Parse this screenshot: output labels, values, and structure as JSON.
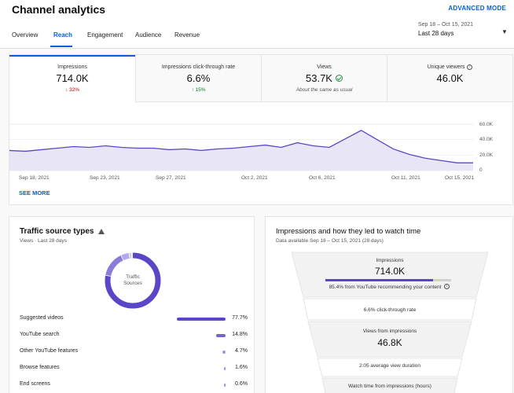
{
  "header": {
    "title": "Channel analytics",
    "advanced_mode": "ADVANCED MODE",
    "tabs": [
      {
        "label": "Overview",
        "active": false
      },
      {
        "label": "Reach",
        "active": true
      },
      {
        "label": "Engagement",
        "active": false
      },
      {
        "label": "Audience",
        "active": false
      },
      {
        "label": "Revenue",
        "active": false
      }
    ],
    "date_range": {
      "dates": "Sep 18 – Oct 15, 2021",
      "label": "Last 28 days"
    }
  },
  "metrics": [
    {
      "label": "Impressions",
      "value": "714.0K",
      "change": "32%",
      "direction": "down"
    },
    {
      "label": "Impressions click-through rate",
      "value": "6.6%",
      "change": "15%",
      "direction": "up"
    },
    {
      "label": "Views",
      "value": "53.7K",
      "note": "About the same as usual"
    },
    {
      "label": "Unique viewers",
      "value": "46.0K"
    }
  ],
  "chart_data": {
    "type": "area",
    "series": [
      {
        "values": [
          26000,
          25000,
          27000,
          29000,
          31000,
          30000,
          32000,
          30000,
          29000,
          29000,
          27000,
          28000,
          26000,
          28000,
          29000,
          31000,
          33000,
          30000,
          36000,
          32000,
          30000,
          41000,
          52000,
          40000,
          28000,
          21000,
          16000,
          13000,
          10000,
          10000
        ]
      }
    ],
    "y_ticks": [
      "60.0K",
      "40.0K",
      "20.0K",
      "0"
    ],
    "ylim": [
      0,
      60000
    ],
    "x_ticks": [
      "Sep 18, 2021",
      "Sep 23, 2021",
      "Sep 27, 2021",
      "Oct 2, 2021",
      "Oct 6, 2021",
      "Oct 11, 2021",
      "Oct 15, 2021"
    ],
    "grid": true,
    "color": "#5a47c8"
  },
  "see_more": "SEE MORE",
  "traffic": {
    "title": "Traffic source types",
    "subtitle": "Views · Last 28 days",
    "donut_label_1": "Traffic",
    "donut_label_2": "Sources",
    "sources": [
      {
        "name": "Suggested videos",
        "pct": "77.7%",
        "value": 77.7
      },
      {
        "name": "YouTube search",
        "pct": "14.8%",
        "value": 14.8
      },
      {
        "name": "Other YouTube features",
        "pct": "4.7%",
        "value": 4.7
      },
      {
        "name": "Browse features",
        "pct": "1.6%",
        "value": 1.6
      },
      {
        "name": "End screens",
        "pct": "0.6%",
        "value": 0.6
      }
    ]
  },
  "funnel": {
    "title": "Impressions and how they led to watch time",
    "subtitle": "Data available Sep 18 – Oct 15, 2021 (28 days)",
    "impressions_label": "Impressions",
    "impressions_value": "714.0K",
    "impressions_share": 0.854,
    "recommend_text": "85.4% from YouTube recommending your content",
    "ctr_text": "6.6% click-through rate",
    "views_label": "Views from impressions",
    "views_value": "46.8K",
    "avg_duration_text": "2:05 average view duration",
    "watch_time_label": "Watch time from impressions (hours)"
  }
}
